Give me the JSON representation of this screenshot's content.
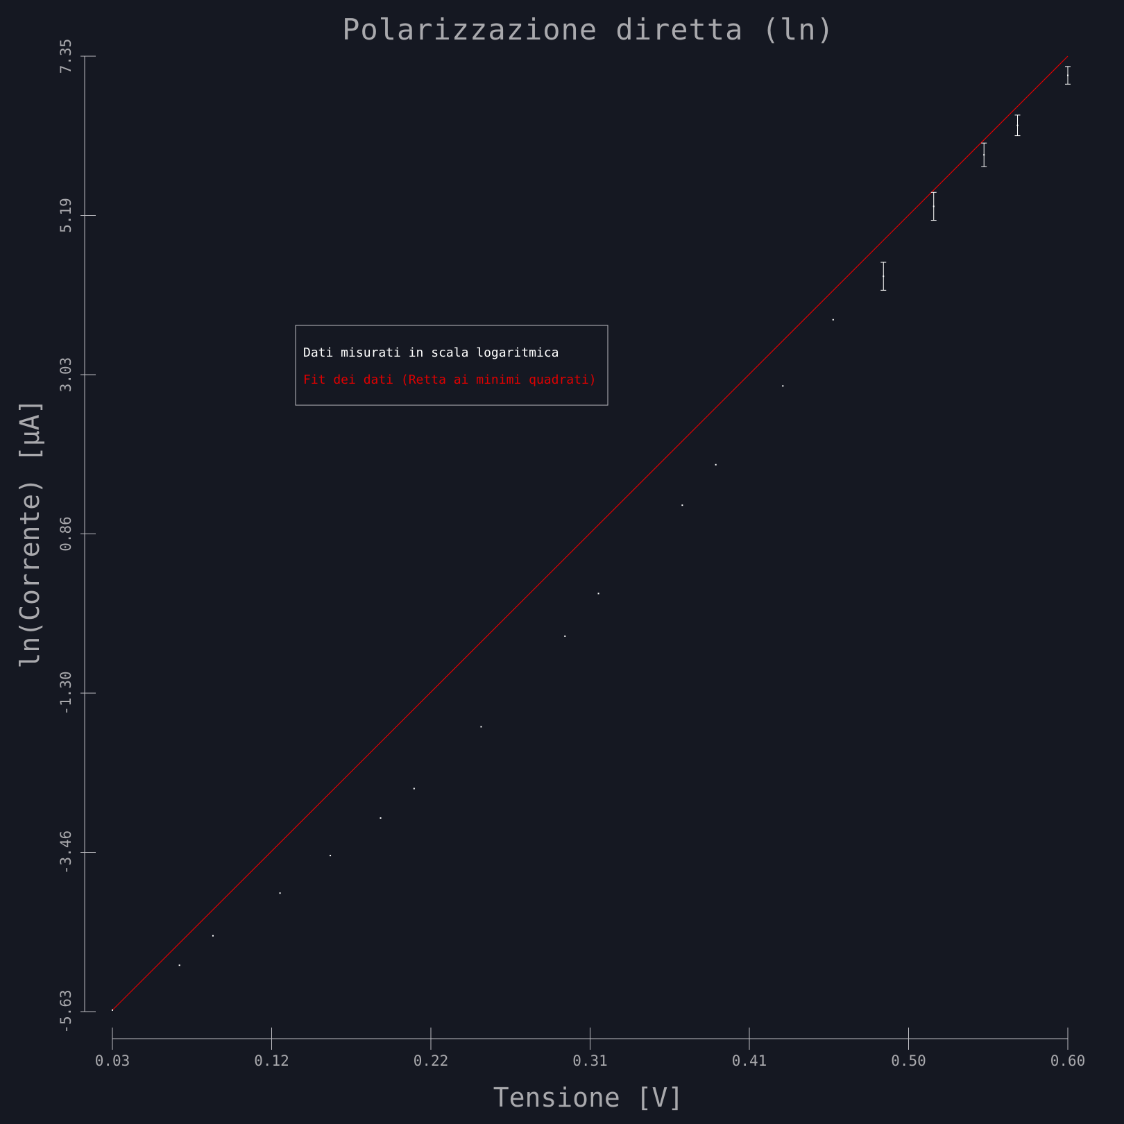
{
  "chart_data": {
    "type": "scatter",
    "title": "Polarizzazione diretta (ln)",
    "xlabel": "Tensione [V]",
    "ylabel": "ln(Corrente) [μA]",
    "xlim": [
      0.03,
      0.6
    ],
    "ylim": [
      -5.63,
      7.35
    ],
    "x_tick_labels": [
      "0.03",
      "0.12",
      "0.22",
      "0.31",
      "0.41",
      "0.50",
      "0.60"
    ],
    "y_tick_labels": [
      "-5.63",
      "-3.46",
      "-1.30",
      "0.86",
      "3.03",
      "5.19",
      "7.35"
    ],
    "legend": {
      "position": "upper-left",
      "entries": [
        {
          "label": "Dati misurati in scala logaritmica",
          "color": "#ffffff"
        },
        {
          "label": "Fit dei dati (Retta ai minimi quadrati)",
          "color": "#e00000"
        }
      ]
    },
    "series": [
      {
        "name": "Dati misurati in scala logaritmica",
        "color": "#ffffff",
        "points": [
          {
            "x": 0.03,
            "y": -5.61,
            "err": 0.0
          },
          {
            "x": 0.07,
            "y": -5.0,
            "err": 0.0
          },
          {
            "x": 0.09,
            "y": -4.6,
            "err": 0.0
          },
          {
            "x": 0.13,
            "y": -4.02,
            "err": 0.0
          },
          {
            "x": 0.16,
            "y": -3.51,
            "err": 0.0
          },
          {
            "x": 0.19,
            "y": -3.0,
            "err": 0.0
          },
          {
            "x": 0.21,
            "y": -2.6,
            "err": 0.0
          },
          {
            "x": 0.25,
            "y": -1.76,
            "err": 0.0
          },
          {
            "x": 0.3,
            "y": -0.53,
            "err": 0.0
          },
          {
            "x": 0.32,
            "y": 0.05,
            "err": 0.0
          },
          {
            "x": 0.37,
            "y": 1.25,
            "err": 0.0
          },
          {
            "x": 0.39,
            "y": 1.8,
            "err": 0.0
          },
          {
            "x": 0.43,
            "y": 2.87,
            "err": 0.0
          },
          {
            "x": 0.46,
            "y": 3.77,
            "err": 0.0
          },
          {
            "x": 0.49,
            "y": 4.36,
            "err": 0.19
          },
          {
            "x": 0.52,
            "y": 5.31,
            "err": 0.19
          },
          {
            "x": 0.55,
            "y": 6.01,
            "err": 0.16
          },
          {
            "x": 0.57,
            "y": 6.41,
            "err": 0.14
          },
          {
            "x": 0.6,
            "y": 7.09,
            "err": 0.12
          }
        ]
      },
      {
        "name": "Fit dei dati (Retta ai minimi quadrati)",
        "color": "#e00000",
        "type": "line",
        "x": [
          0.03,
          0.6
        ],
        "y": [
          -5.61,
          7.35
        ]
      }
    ]
  }
}
